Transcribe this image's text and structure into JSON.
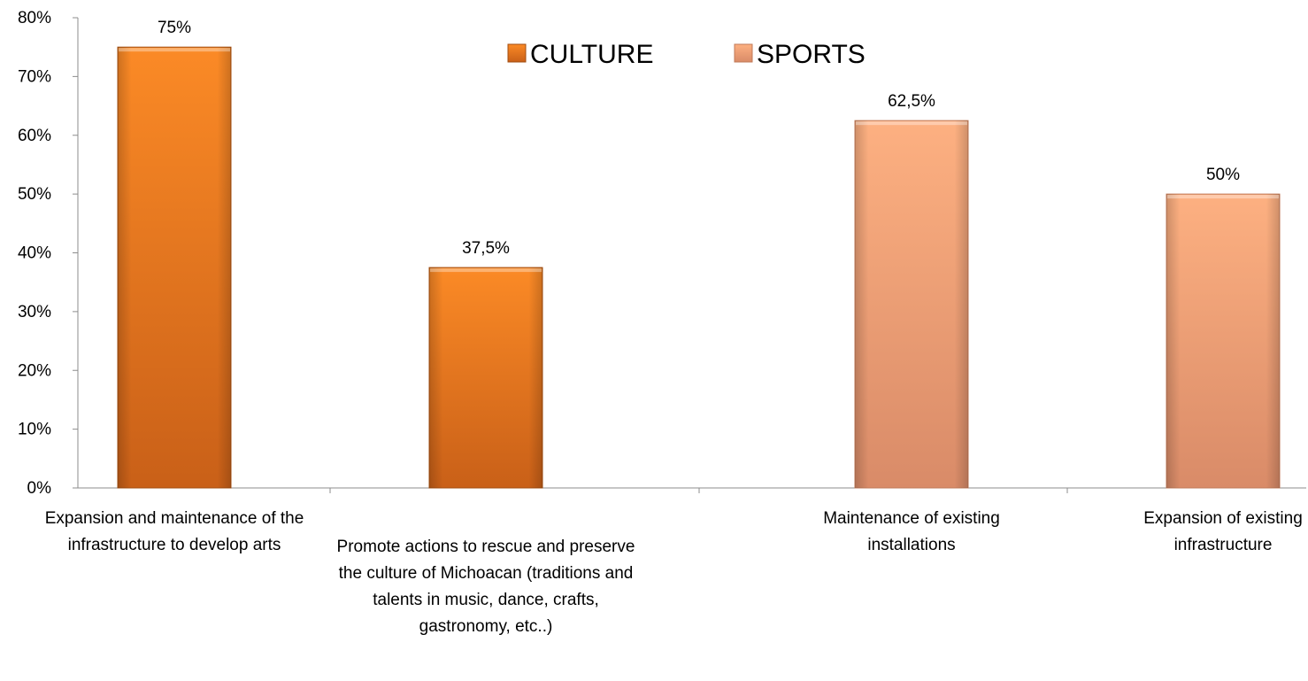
{
  "chart_data": {
    "type": "bar",
    "title": "",
    "xlabel": "",
    "ylabel": "",
    "ylim": [
      0,
      0.8
    ],
    "y_ticks": [
      0,
      0.1,
      0.2,
      0.3,
      0.4,
      0.5,
      0.6,
      0.7,
      0.8
    ],
    "y_tick_labels": [
      "0%",
      "10%",
      "20%",
      "30%",
      "40%",
      "50%",
      "60%",
      "70%",
      "80%"
    ],
    "grid": false,
    "legend_position": "top-center",
    "series": [
      {
        "name": "CULTURE",
        "color": "#f47f1f"
      },
      {
        "name": "SPORTS",
        "color": "#f7a677"
      }
    ],
    "bars": [
      {
        "category": "Expansion and maintenance of the infrastructure to develop arts",
        "series": "CULTURE",
        "value": 0.75,
        "label": "75%"
      },
      {
        "category": "Promote actions to rescue and preserve the culture of Michoacan (traditions and talents in music, dance, crafts, gastronomy, etc..)",
        "series": "CULTURE",
        "value": 0.375,
        "label": "37,5%"
      },
      {
        "category": "Maintenance of existing installations",
        "series": "SPORTS",
        "value": 0.625,
        "label": "62,5%"
      },
      {
        "category": "Expansion of existing infrastructure",
        "series": "SPORTS",
        "value": 0.5,
        "label": "50%"
      }
    ]
  }
}
